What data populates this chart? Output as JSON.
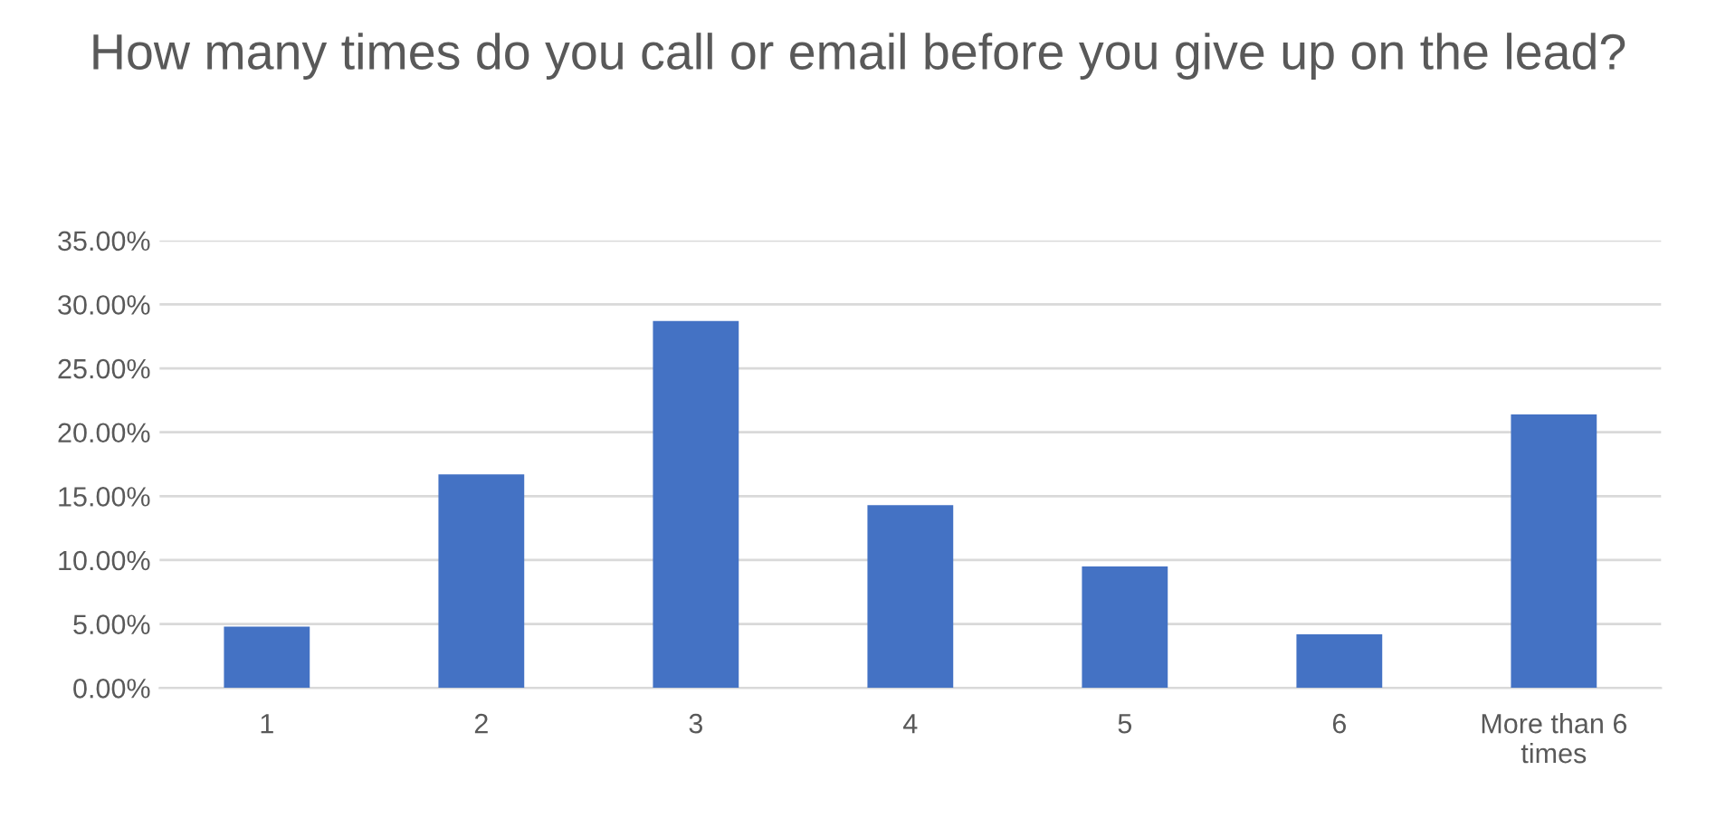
{
  "chart_data": {
    "type": "bar",
    "title": "How many times do you call or email before you give up on the lead?",
    "categories": [
      "1",
      "2",
      "3",
      "4",
      "5",
      "6",
      "More than 6\ntimes"
    ],
    "values": [
      4.8,
      16.7,
      28.7,
      14.3,
      9.5,
      4.2,
      21.4
    ],
    "color": "#4472c4",
    "ylim": [
      0,
      35
    ],
    "yticks": [
      {
        "value": 0,
        "label": "0.00%"
      },
      {
        "value": 5,
        "label": "5.00%"
      },
      {
        "value": 10,
        "label": "10.00%"
      },
      {
        "value": 15,
        "label": "15.00%"
      },
      {
        "value": 20,
        "label": "20.00%"
      },
      {
        "value": 25,
        "label": "25.00%"
      },
      {
        "value": 30,
        "label": "30.00%"
      },
      {
        "value": 35,
        "label": "35.00%"
      }
    ],
    "grid": "y"
  }
}
